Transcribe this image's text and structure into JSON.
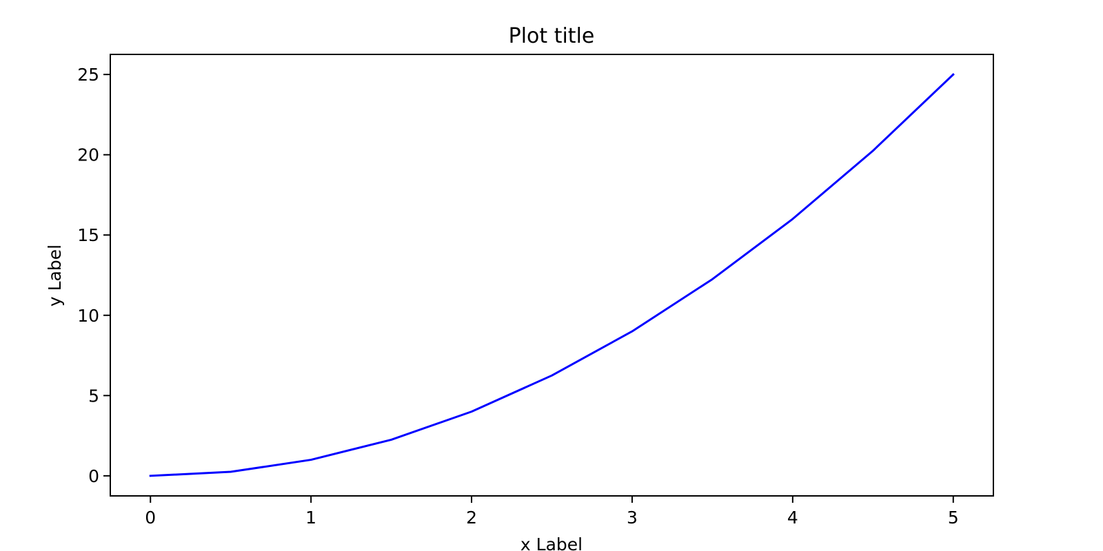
{
  "chart_data": {
    "type": "line",
    "title": "Plot title",
    "xlabel": "x Label",
    "ylabel": "y Label",
    "xlim": [
      -0.25,
      5.25
    ],
    "ylim": [
      -1.25,
      26.25
    ],
    "grid": false,
    "xticks": [
      {
        "value": 0,
        "label": "0"
      },
      {
        "value": 1,
        "label": "1"
      },
      {
        "value": 2,
        "label": "2"
      },
      {
        "value": 3,
        "label": "3"
      },
      {
        "value": 4,
        "label": "4"
      },
      {
        "value": 5,
        "label": "5"
      }
    ],
    "yticks": [
      {
        "value": 0,
        "label": "0"
      },
      {
        "value": 5,
        "label": "5"
      },
      {
        "value": 10,
        "label": "10"
      },
      {
        "value": 15,
        "label": "15"
      },
      {
        "value": 20,
        "label": "20"
      },
      {
        "value": 25,
        "label": "25"
      }
    ],
    "series": [
      {
        "color": "#0000ff",
        "x": [
          0,
          0.5,
          1,
          1.5,
          2,
          2.5,
          3,
          3.5,
          4,
          4.5,
          5
        ],
        "y": [
          0,
          0.25,
          1,
          2.25,
          4,
          6.25,
          9,
          12.25,
          16,
          20.25,
          25
        ]
      }
    ]
  }
}
